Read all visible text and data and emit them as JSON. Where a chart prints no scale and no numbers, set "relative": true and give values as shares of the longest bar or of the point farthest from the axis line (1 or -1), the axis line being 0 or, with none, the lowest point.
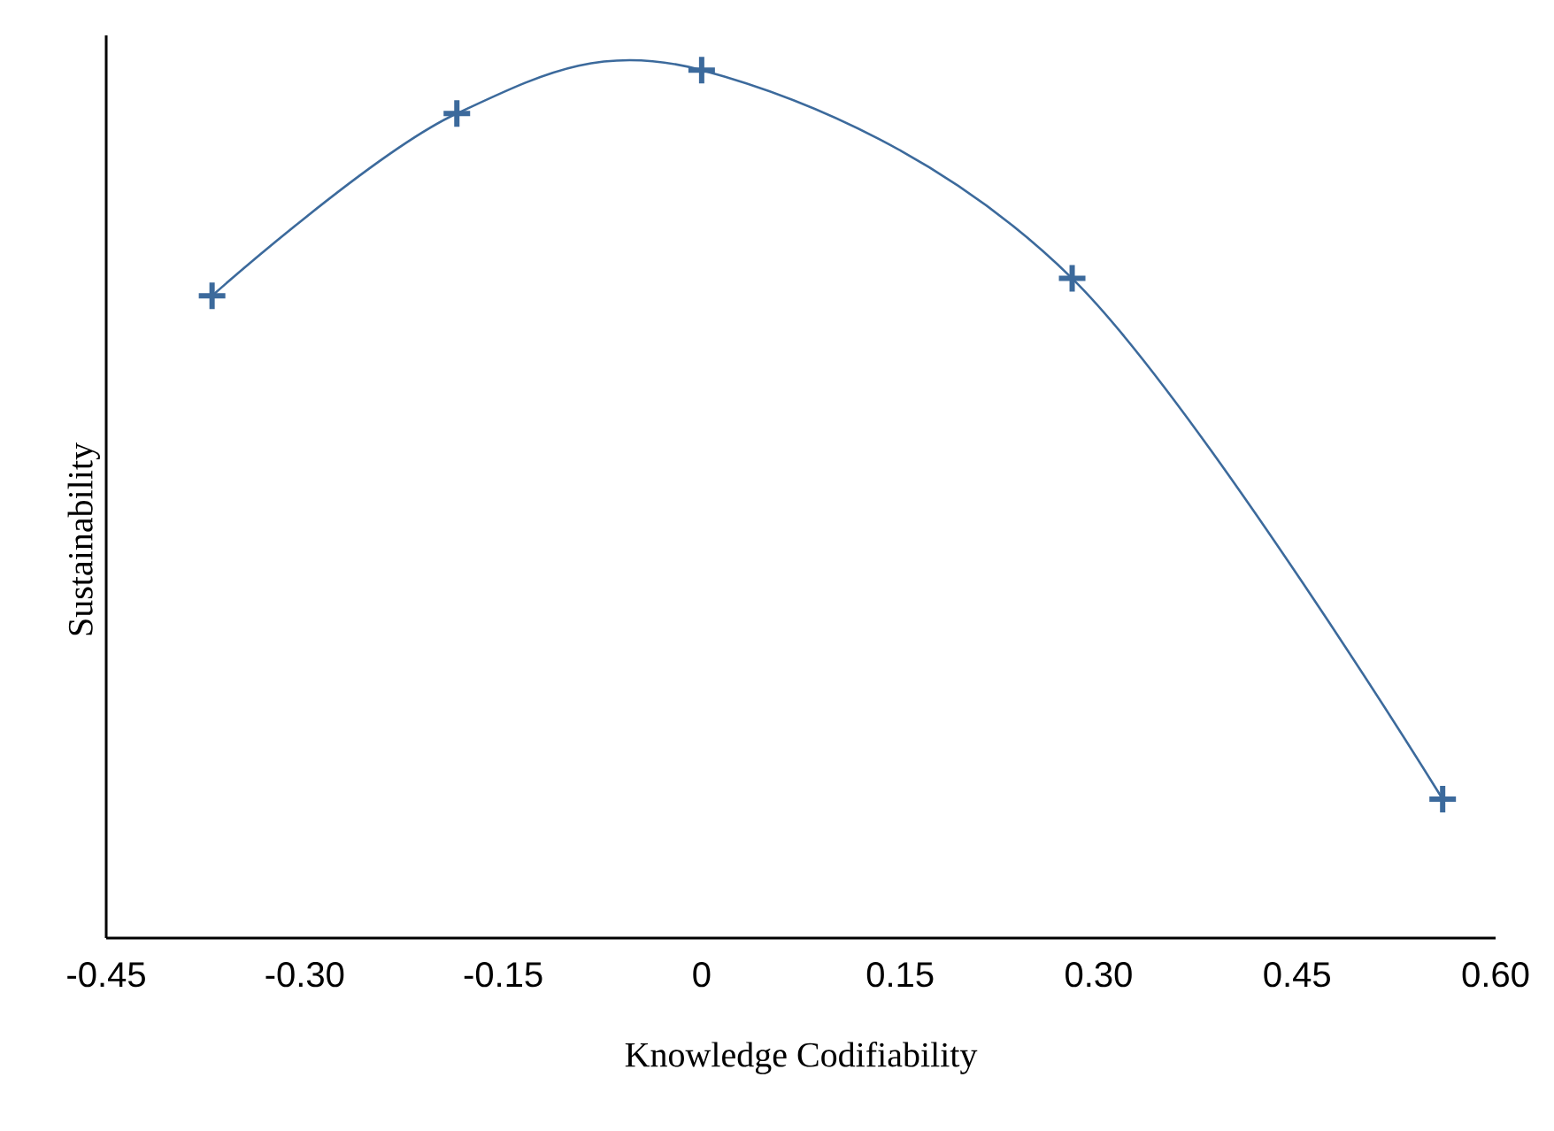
{
  "chart_data": {
    "type": "line",
    "xlabel": "Knowledge Codifiability",
    "ylabel": "Sustainability",
    "relative": true,
    "x": [
      -0.37,
      -0.185,
      0,
      0.28,
      0.56
    ],
    "xlim": [
      -0.45,
      0.6
    ],
    "xticks": [
      {
        "value": -0.45,
        "label": "-0.45"
      },
      {
        "value": -0.3,
        "label": "-0.30"
      },
      {
        "value": -0.15,
        "label": "-0.15"
      },
      0,
      {
        "value": 0.15,
        "label": "0.15"
      },
      {
        "value": 0.3,
        "label": "0.30"
      },
      {
        "value": 0.45,
        "label": "0.45"
      },
      {
        "value": 0.6,
        "label": "0.60"
      }
    ],
    "series": [
      {
        "color": "#3c6a9c",
        "values": [
          0.74,
          0.95,
          1,
          0.76,
          0.16
        ]
      }
    ],
    "marker": "cross",
    "line_style": "solid",
    "grid": false
  }
}
